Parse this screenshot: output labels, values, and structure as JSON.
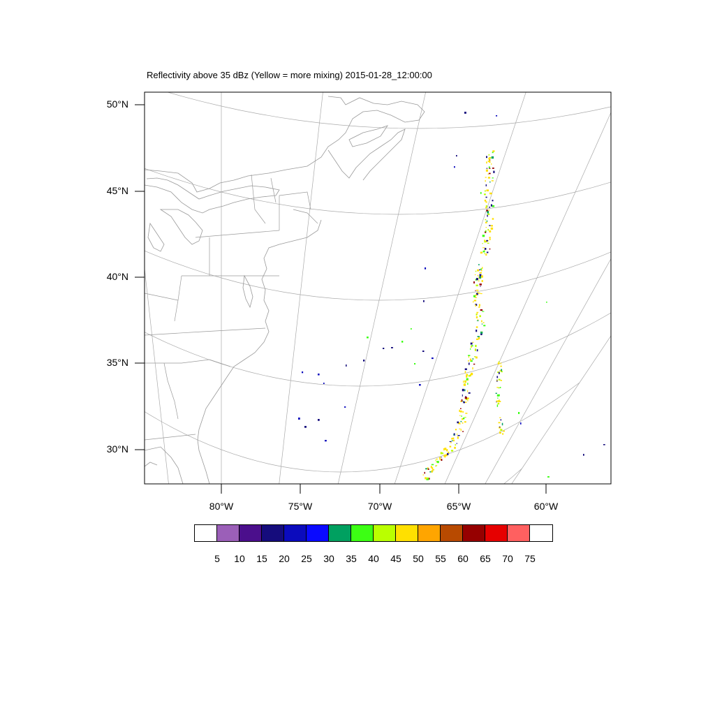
{
  "title": "Reflectivity above 35 dBz (Yellow = more mixing) 2015-01-28_12:00:00",
  "lat_labels": [
    {
      "text": "50°N",
      "lat": 50
    },
    {
      "text": "45°N",
      "lat": 45
    },
    {
      "text": "40°N",
      "lat": 40
    },
    {
      "text": "35°N",
      "lat": 35
    },
    {
      "text": "30°N",
      "lat": 30
    }
  ],
  "lon_labels": [
    {
      "text": "80°W",
      "lon": -80
    },
    {
      "text": "75°W",
      "lon": -75
    },
    {
      "text": "70°W",
      "lon": -70
    },
    {
      "text": "65°W",
      "lon": -65
    },
    {
      "text": "60°W",
      "lon": -60
    }
  ],
  "colorbar": {
    "colors": [
      "#ffffff",
      "#9b5fb8",
      "#4b0f8c",
      "#150c7c",
      "#0b0bbd",
      "#0a0aff",
      "#00a060",
      "#3cff14",
      "#baff00",
      "#ffe000",
      "#ffa500",
      "#b84a00",
      "#960000",
      "#e60000",
      "#ff6060",
      "#ffffff"
    ],
    "labels": [
      "5",
      "10",
      "15",
      "20",
      "25",
      "30",
      "35",
      "40",
      "45",
      "50",
      "55",
      "60",
      "65",
      "70",
      "75"
    ]
  },
  "colors": {
    "grid": "#aaaaaa",
    "coast": "#999999",
    "frame": "#000000"
  },
  "legend_note": "Yellow = more mixing"
}
